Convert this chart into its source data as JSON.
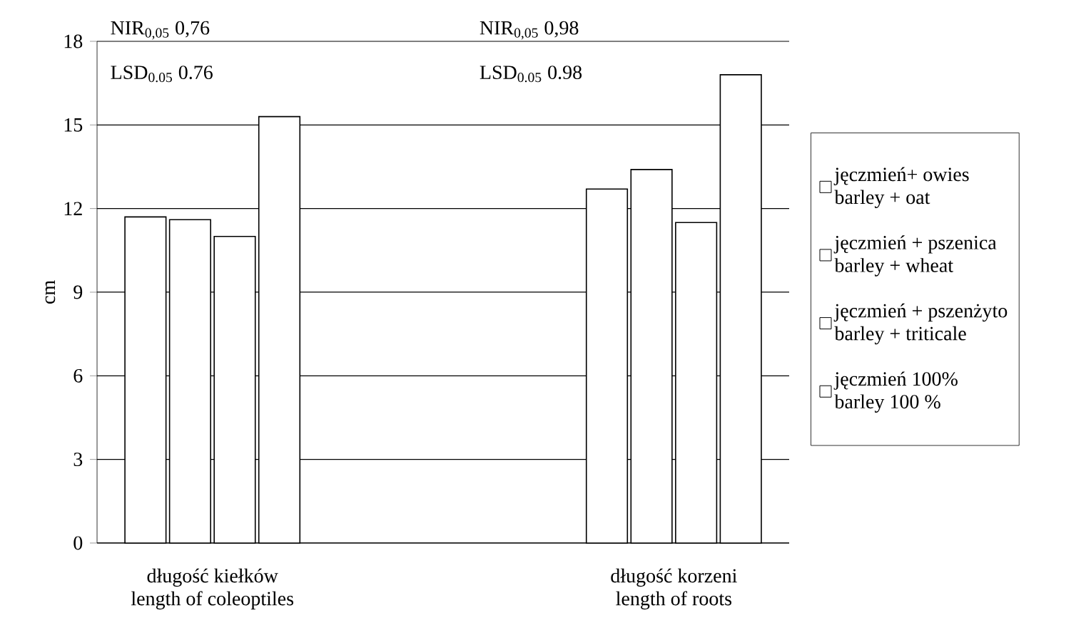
{
  "chart_data": {
    "type": "bar",
    "ylabel": "cm",
    "categories": [
      "długość kiełków\nlength of coleoptiles",
      null,
      "długość korzeni\nlength of roots"
    ],
    "series": [
      {
        "name": "jęczmień+ owies\nbarley + oat",
        "color": "#ffffff",
        "values": [
          11.7,
          null,
          12.7
        ]
      },
      {
        "name": "jęczmień + pszenica\nbarley + wheat",
        "color": "#ffffff",
        "values": [
          11.6,
          null,
          13.4
        ]
      },
      {
        "name": "jęczmień + pszenżyto\nbarley + triticale",
        "color": "#ffffff",
        "values": [
          11.0,
          null,
          11.5
        ]
      },
      {
        "name": "jęczmień 100%\nbarley 100 %",
        "color": "#ffffff",
        "values": [
          15.3,
          null,
          16.8
        ]
      }
    ],
    "ylim": [
      0,
      18
    ],
    "yticks": [
      0,
      3,
      6,
      9,
      12,
      15,
      18
    ],
    "grid": "y",
    "legend": "right",
    "annotations": [
      "NIR$_{0,05}$ 0,76",
      "LSD$_{0.05}$ 0.76",
      "NIR$_{0,05}$ 0,98",
      "LSD$_{0.05}$ 0.98"
    ]
  }
}
